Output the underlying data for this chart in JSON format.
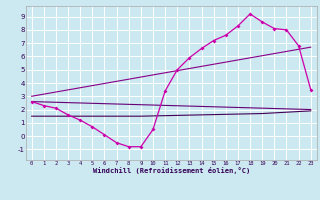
{
  "bg_color": "#cce8f0",
  "grid_color": "#ffffff",
  "line_color_magenta": "#cc00aa",
  "line_color_purple1": "#880088",
  "line_color_purple2": "#660077",
  "line_color_darkpurple": "#440055",
  "xlabel": "Windchill (Refroidissement éolien,°C)",
  "ylabel_ticks": [
    -1,
    0,
    1,
    2,
    3,
    4,
    5,
    6,
    7,
    8,
    9
  ],
  "xlabel_ticks": [
    0,
    1,
    2,
    3,
    4,
    5,
    6,
    7,
    8,
    9,
    10,
    11,
    12,
    13,
    14,
    15,
    16,
    17,
    18,
    19,
    20,
    21,
    22,
    23
  ],
  "xlim": [
    -0.5,
    23.5
  ],
  "ylim": [
    -1.8,
    9.8
  ],
  "series1_x": [
    0,
    1,
    2,
    3,
    4,
    5,
    6,
    7,
    8,
    9,
    10,
    11,
    12,
    13,
    14,
    15,
    16,
    17,
    18,
    19,
    20,
    21,
    22,
    23
  ],
  "series1_y": [
    2.6,
    2.3,
    2.1,
    1.6,
    1.2,
    0.7,
    0.1,
    -0.5,
    -0.8,
    -0.8,
    0.5,
    3.4,
    5.0,
    5.9,
    6.6,
    7.2,
    7.6,
    8.3,
    9.2,
    8.6,
    8.1,
    8.0,
    6.8,
    3.5
  ],
  "series2_x": [
    0,
    23
  ],
  "series2_y": [
    2.6,
    2.0
  ],
  "series3_x": [
    0,
    23
  ],
  "series3_y": [
    3.0,
    6.7
  ],
  "series4_x": [
    0,
    3,
    9,
    19,
    23
  ],
  "series4_y": [
    1.5,
    1.5,
    1.5,
    1.7,
    1.9
  ]
}
